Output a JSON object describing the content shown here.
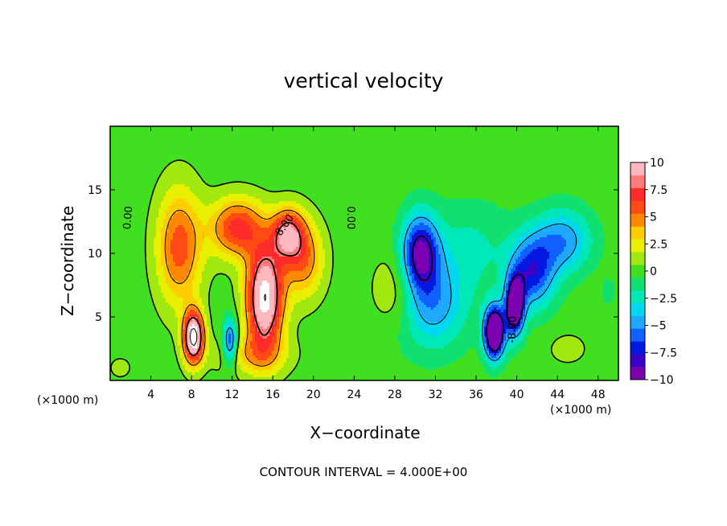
{
  "chart_data": {
    "type": "heatmap",
    "title": "vertical velocity",
    "xlabel": "X−coordinate",
    "ylabel": "Z−coordinate",
    "x_unit_left": "(×1000 m)",
    "x_unit_right": "(×1000 m)",
    "footer": "CONTOUR INTERVAL = 4.000E+00",
    "xlim": [
      0,
      50
    ],
    "ylim": [
      0,
      20
    ],
    "x_ticks": [
      "4",
      "8",
      "12",
      "16",
      "20",
      "24",
      "28",
      "32",
      "36",
      "40",
      "44",
      "48"
    ],
    "y_ticks": [
      "5",
      "10",
      "15"
    ],
    "colorbar": {
      "range": [
        -10,
        10
      ],
      "ticks": [
        "10",
        "7.5",
        "5",
        "2.5",
        "0",
        "−2.5",
        "−5",
        "−7.5",
        "−10"
      ],
      "colors": [
        "#7a00b0",
        "#3a00c8",
        "#0018e0",
        "#1060ff",
        "#1ea8ff",
        "#00d8f0",
        "#00e8b8",
        "#10e070",
        "#40e020",
        "#a0e810",
        "#e8f000",
        "#ffcc00",
        "#ff8800",
        "#ff4a14",
        "#ff2a2a",
        "#ff7a7a",
        "#ffb8c0"
      ]
    },
    "contour_labels": [
      {
        "text": "0.00",
        "x": 1.8,
        "z": 12.8,
        "angle": -85
      },
      {
        "text": "8.00",
        "x": 17.2,
        "z": 12.2,
        "angle": -55
      },
      {
        "text": "0.00",
        "x": 23.6,
        "z": 12.8,
        "angle": 90
      },
      {
        "text": "-8.00",
        "x": 39.6,
        "z": 4.0,
        "angle": -88
      }
    ],
    "features": [
      {
        "kind": "updraft",
        "x": 8,
        "z": 3.5,
        "w": 10
      },
      {
        "kind": "updraft",
        "x": 15,
        "z": 7,
        "w": 10
      },
      {
        "kind": "updraft",
        "x": 12,
        "z": 12,
        "w": 8
      },
      {
        "kind": "downdraft",
        "x": 30.5,
        "z": 10,
        "w": -8
      },
      {
        "kind": "downdraft",
        "x": 38,
        "z": 4,
        "w": -10
      },
      {
        "kind": "downdraft",
        "x": 43,
        "z": 9.5,
        "w": -7
      }
    ]
  }
}
